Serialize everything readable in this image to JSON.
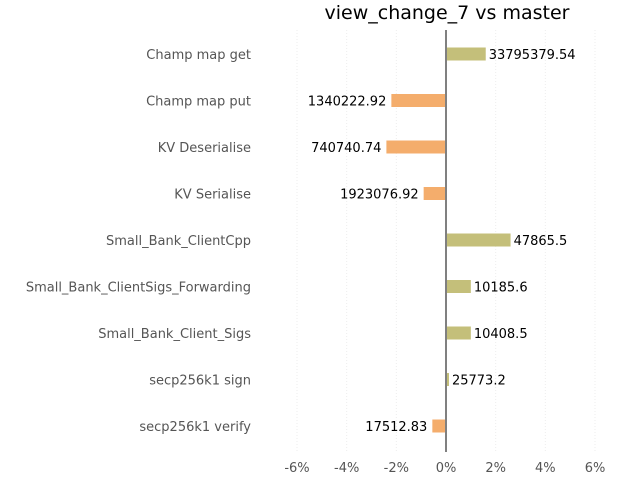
{
  "chart_data": {
    "type": "bar",
    "orientation": "horizontal",
    "title": "view_change_7 vs master",
    "xlabel": "",
    "ylabel": "",
    "xlim": [
      -6,
      6
    ],
    "x_ticks": [
      -6,
      -4,
      -2,
      0,
      2,
      4,
      6
    ],
    "x_tick_labels": [
      "-6%",
      "-4%",
      "-2%",
      "0%",
      "2%",
      "4%",
      "6%"
    ],
    "grid": true,
    "colors": {
      "positive": "#c4bf7a",
      "negative": "#f4ad6c",
      "zero_line": "#808080"
    },
    "categories": [
      "Champ map get",
      "Champ map put",
      "KV Deserialise",
      "KV Serialise",
      "Small_Bank_ClientCpp",
      "Small_Bank_ClientSigs_Forwarding",
      "Small_Bank_Client_Sigs",
      "secp256k1 sign",
      "secp256k1 verify"
    ],
    "values": [
      1.6,
      -2.2,
      -2.4,
      -0.9,
      2.6,
      1.0,
      1.0,
      0.12,
      -0.55
    ],
    "data_labels": [
      "33795379.54",
      "1340222.92",
      "740740.74",
      "1923076.92",
      "47865.5",
      "10185.6",
      "10408.5",
      "25773.2",
      "17512.83"
    ]
  }
}
